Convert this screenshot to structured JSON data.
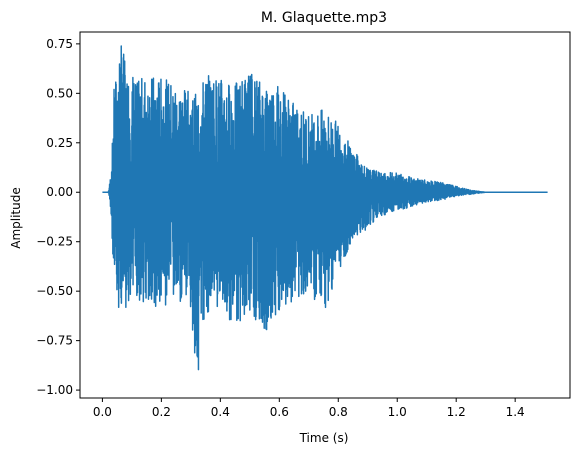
{
  "chart_data": {
    "type": "line",
    "title": "M. Glaquette.mp3",
    "xlabel": "Time (s)",
    "ylabel": "Amplitude",
    "xlim": [
      -0.076,
      1.586
    ],
    "ylim": [
      -1.04,
      0.81
    ],
    "xticks": [
      0.0,
      0.2,
      0.4,
      0.6,
      0.8,
      1.0,
      1.2,
      1.4
    ],
    "xtick_labels": [
      "0.0",
      "0.2",
      "0.4",
      "0.6",
      "0.8",
      "1.0",
      "1.2",
      "1.4"
    ],
    "yticks": [
      -1.0,
      -0.75,
      -0.5,
      -0.25,
      0.0,
      0.25,
      0.5,
      0.75
    ],
    "ytick_labels": [
      "−1.00",
      "−0.75",
      "−0.50",
      "−0.25",
      "0.00",
      "0.25",
      "0.50",
      "0.75"
    ],
    "grid": false,
    "series": [
      {
        "color": "#1f77b4",
        "x": [
          0.0,
          0.02,
          0.025,
          0.03,
          0.035,
          0.04,
          0.05,
          0.06,
          0.07,
          0.08,
          0.1,
          0.12,
          0.15,
          0.2,
          0.25,
          0.3,
          0.32,
          0.35,
          0.4,
          0.45,
          0.5,
          0.55,
          0.6,
          0.65,
          0.7,
          0.75,
          0.8,
          0.85,
          0.9,
          0.95,
          1.0,
          1.05,
          1.1,
          1.15,
          1.2,
          1.25,
          1.3,
          1.35,
          1.4,
          1.45,
          1.51
        ],
        "envelope_upper": [
          0.0,
          0.0,
          0.05,
          0.12,
          0.3,
          0.55,
          0.62,
          0.76,
          0.75,
          0.6,
          0.62,
          0.56,
          0.6,
          0.58,
          0.55,
          0.5,
          0.5,
          0.6,
          0.58,
          0.55,
          0.62,
          0.55,
          0.56,
          0.45,
          0.4,
          0.42,
          0.35,
          0.22,
          0.12,
          0.1,
          0.1,
          0.08,
          0.06,
          0.05,
          0.03,
          0.01,
          0.0,
          0.0,
          0.0,
          0.0,
          0.0
        ],
        "envelope_lower": [
          0.0,
          0.0,
          -0.05,
          -0.15,
          -0.3,
          -0.55,
          -0.6,
          -0.6,
          -0.58,
          -0.63,
          -0.6,
          -0.55,
          -0.58,
          -0.6,
          -0.55,
          -0.6,
          -0.97,
          -0.62,
          -0.58,
          -0.7,
          -0.6,
          -0.72,
          -0.6,
          -0.55,
          -0.5,
          -0.62,
          -0.4,
          -0.25,
          -0.18,
          -0.12,
          -0.1,
          -0.07,
          -0.05,
          -0.04,
          -0.02,
          -0.01,
          0.0,
          0.0,
          0.0,
          0.0,
          0.0
        ]
      }
    ]
  }
}
